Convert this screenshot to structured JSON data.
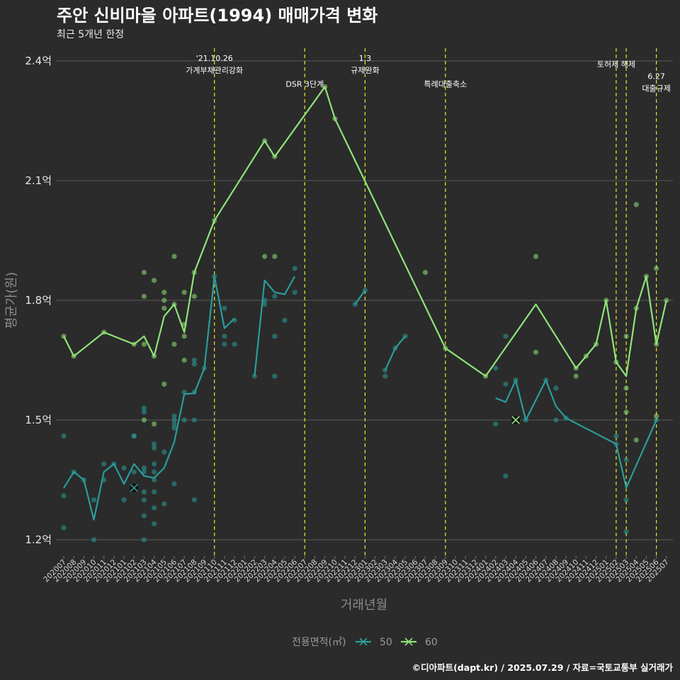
{
  "chart_data": {
    "type": "line",
    "title": "주안 신비마을 아파트(1994) 매매가격 변화",
    "subtitle": "최근 5개년 한정",
    "xlabel": "거래년월",
    "ylabel": "평균가(원)",
    "caption": "©디아파트(dapt.kr) / 2025.07.29 / 자료=국토교통부 실거래가",
    "legend": {
      "title": "전용면적(㎡)",
      "position": "bottom"
    },
    "categories": [
      "202007",
      "202008",
      "202009",
      "202010",
      "202011",
      "202012",
      "202101",
      "202102",
      "202103",
      "202104",
      "202105",
      "202106",
      "202107",
      "202108",
      "202109",
      "202110",
      "202111",
      "202112",
      "202201",
      "202202",
      "202203",
      "202204",
      "202205",
      "202206",
      "202207",
      "202208",
      "202209",
      "202210",
      "202211",
      "202212",
      "202301",
      "202302",
      "202303",
      "202304",
      "202305",
      "202306",
      "202307",
      "202308",
      "202309",
      "202310",
      "202311",
      "202312",
      "202401",
      "202402",
      "202403",
      "202404",
      "202405",
      "202406",
      "202407",
      "202408",
      "202409",
      "202410",
      "202411",
      "202412",
      "202501",
      "202502",
      "202503",
      "202504",
      "202505",
      "202506",
      "202507"
    ],
    "y_ticks": [
      {
        "value": 1.2,
        "label": "1.2억"
      },
      {
        "value": 1.5,
        "label": "1.5억"
      },
      {
        "value": 1.8,
        "label": "1.8억"
      },
      {
        "value": 2.1,
        "label": "2.1억"
      },
      {
        "value": 2.4,
        "label": "2.4억"
      }
    ],
    "ylim": [
      1.13,
      2.47
    ],
    "grid": true,
    "events": [
      {
        "month": "202110",
        "lines": [
          "'21.10.26",
          "가계부채관리강화"
        ],
        "label_y": 2.4
      },
      {
        "month": "202207",
        "lines": [
          "DSR 3단계"
        ],
        "label_y": 2.335
      },
      {
        "month": "202301",
        "lines": [
          "1.3",
          "규제완화"
        ],
        "label_y": 2.4
      },
      {
        "month": "202309",
        "lines": [
          "특례대출축소"
        ],
        "label_y": 2.335
      },
      {
        "month": "202502",
        "lines": [
          "토허제 해제"
        ],
        "label_y": 2.385
      },
      {
        "month": "202503",
        "lines": [],
        "label_y": 2.385
      },
      {
        "month": "202506",
        "lines": [
          "6.27",
          "대출규제"
        ],
        "label_y": 2.355
      }
    ],
    "series": [
      {
        "name": "50",
        "color": "#2a9d9b",
        "line_segments": [
          [
            [
              "202007",
              1.33
            ],
            [
              "202008",
              1.37
            ],
            [
              "202009",
              1.35
            ],
            [
              "202010",
              1.25
            ],
            [
              "202011",
              1.37
            ],
            [
              "202012",
              1.39
            ],
            [
              "202101",
              1.34
            ],
            [
              "202102",
              1.39
            ],
            [
              "202103",
              1.36
            ],
            [
              "202104",
              1.355
            ],
            [
              "202105",
              1.38
            ],
            [
              "202106",
              1.445
            ],
            [
              "202107",
              1.565
            ],
            [
              "202108",
              1.567
            ],
            [
              "202109",
              1.63
            ],
            [
              "202110",
              1.86
            ],
            [
              "202111",
              1.73
            ],
            [
              "202112",
              1.755
            ]
          ],
          [
            [
              "202202",
              1.61
            ],
            [
              "202203",
              1.85
            ],
            [
              "202204",
              1.82
            ],
            [
              "202205",
              1.815
            ],
            [
              "202206",
              1.86
            ]
          ],
          [
            [
              "202212",
              1.79
            ],
            [
              "202301",
              1.825
            ]
          ],
          [
            [
              "202303",
              1.625
            ],
            [
              "202304",
              1.68
            ],
            [
              "202305",
              1.71
            ]
          ],
          [
            [
              "202402",
              1.555
            ],
            [
              "202403",
              1.545
            ],
            [
              "202404",
              1.6
            ],
            [
              "202405",
              1.5
            ],
            [
              "202407",
              1.6
            ],
            [
              "202408",
              1.535
            ],
            [
              "202409",
              1.505
            ],
            [
              "202502",
              1.44
            ],
            [
              "202503",
              1.33
            ],
            [
              "202506",
              1.5
            ]
          ]
        ],
        "points": [
          [
            "202007",
            1.46
          ],
          [
            "202007",
            1.31
          ],
          [
            "202007",
            1.23
          ],
          [
            "202008",
            1.37
          ],
          [
            "202009",
            1.35
          ],
          [
            "202010",
            1.2
          ],
          [
            "202010",
            1.3
          ],
          [
            "202011",
            1.35
          ],
          [
            "202011",
            1.39
          ],
          [
            "202012",
            1.39
          ],
          [
            "202101",
            1.38
          ],
          [
            "202101",
            1.3
          ],
          [
            "202102",
            1.46
          ],
          [
            "202102",
            1.46
          ],
          [
            "202102",
            1.37
          ],
          [
            "202103",
            1.53
          ],
          [
            "202103",
            1.52
          ],
          [
            "202103",
            1.37
          ],
          [
            "202103",
            1.32
          ],
          [
            "202103",
            1.3
          ],
          [
            "202103",
            1.26
          ],
          [
            "202103",
            1.2
          ],
          [
            "202103",
            1.38
          ],
          [
            "202104",
            1.44
          ],
          [
            "202104",
            1.43
          ],
          [
            "202104",
            1.39
          ],
          [
            "202104",
            1.37
          ],
          [
            "202104",
            1.35
          ],
          [
            "202104",
            1.32
          ],
          [
            "202104",
            1.28
          ],
          [
            "202104",
            1.24
          ],
          [
            "202105",
            1.42
          ],
          [
            "202105",
            1.29
          ],
          [
            "202106",
            1.51
          ],
          [
            "202106",
            1.5
          ],
          [
            "202106",
            1.49
          ],
          [
            "202106",
            1.48
          ],
          [
            "202106",
            1.34
          ],
          [
            "202107",
            1.5
          ],
          [
            "202107",
            1.57
          ],
          [
            "202108",
            1.64
          ],
          [
            "202108",
            1.65
          ],
          [
            "202108",
            1.57
          ],
          [
            "202108",
            1.5
          ],
          [
            "202108",
            1.3
          ],
          [
            "202109",
            1.63
          ],
          [
            "202110",
            1.86
          ],
          [
            "202111",
            1.78
          ],
          [
            "202111",
            1.71
          ],
          [
            "202111",
            1.69
          ],
          [
            "202112",
            1.75
          ],
          [
            "202112",
            1.69
          ],
          [
            "202202",
            1.61
          ],
          [
            "202203",
            1.8
          ],
          [
            "202203",
            1.79
          ],
          [
            "202204",
            1.81
          ],
          [
            "202204",
            1.71
          ],
          [
            "202204",
            1.61
          ],
          [
            "202205",
            1.75
          ],
          [
            "202206",
            1.88
          ],
          [
            "202206",
            1.82
          ],
          [
            "202212",
            1.79
          ],
          [
            "202301",
            1.825
          ],
          [
            "202303",
            1.61
          ],
          [
            "202303",
            1.625
          ],
          [
            "202304",
            1.68
          ],
          [
            "202305",
            1.71
          ],
          [
            "202402",
            1.63
          ],
          [
            "202402",
            1.49
          ],
          [
            "202403",
            1.71
          ],
          [
            "202403",
            1.59
          ],
          [
            "202403",
            1.36
          ],
          [
            "202404",
            1.6
          ],
          [
            "202405",
            1.5
          ],
          [
            "202407",
            1.6
          ],
          [
            "202408",
            1.58
          ],
          [
            "202408",
            1.5
          ],
          [
            "202409",
            1.505
          ],
          [
            "202502",
            1.46
          ],
          [
            "202502",
            1.44
          ],
          [
            "202503",
            1.4
          ],
          [
            "202503",
            1.3
          ],
          [
            "202503",
            1.22
          ],
          [
            "202506",
            1.5
          ]
        ],
        "marker_point": [
          "202102",
          1.33
        ]
      },
      {
        "name": "60",
        "color": "#90e37a",
        "line_segments": [
          [
            [
              "202007",
              1.71
            ],
            [
              "202008",
              1.66
            ],
            [
              "202011",
              1.72
            ],
            [
              "202102",
              1.69
            ],
            [
              "202103",
              1.71
            ],
            [
              "202104",
              1.66
            ],
            [
              "202105",
              1.76
            ],
            [
              "202106",
              1.79
            ],
            [
              "202107",
              1.72
            ],
            [
              "202108",
              1.87
            ],
            [
              "202110",
              2.0
            ],
            [
              "202203",
              2.2
            ],
            [
              "202204",
              2.16
            ],
            [
              "202209",
              2.335
            ],
            [
              "202210",
              2.255
            ],
            [
              "202309",
              1.68
            ],
            [
              "202401",
              1.61
            ],
            [
              "202406",
              1.79
            ],
            [
              "202410",
              1.63
            ],
            [
              "202411",
              1.66
            ],
            [
              "202412",
              1.69
            ],
            [
              "202501",
              1.8
            ],
            [
              "202502",
              1.645
            ],
            [
              "202503",
              1.61
            ],
            [
              "202504",
              1.78
            ],
            [
              "202505",
              1.86
            ],
            [
              "202506",
              1.69
            ],
            [
              "202507",
              1.8
            ]
          ]
        ],
        "points": [
          [
            "202007",
            1.71
          ],
          [
            "202008",
            1.66
          ],
          [
            "202011",
            1.72
          ],
          [
            "202102",
            1.69
          ],
          [
            "202103",
            1.87
          ],
          [
            "202103",
            1.81
          ],
          [
            "202103",
            1.5
          ],
          [
            "202103",
            1.69
          ],
          [
            "202104",
            1.85
          ],
          [
            "202104",
            1.49
          ],
          [
            "202104",
            1.66
          ],
          [
            "202105",
            1.82
          ],
          [
            "202105",
            1.8
          ],
          [
            "202105",
            1.78
          ],
          [
            "202105",
            1.59
          ],
          [
            "202106",
            1.91
          ],
          [
            "202106",
            1.79
          ],
          [
            "202106",
            1.69
          ],
          [
            "202107",
            1.82
          ],
          [
            "202107",
            1.74
          ],
          [
            "202107",
            1.71
          ],
          [
            "202107",
            1.65
          ],
          [
            "202108",
            1.87
          ],
          [
            "202108",
            1.81
          ],
          [
            "202110",
            2.0
          ],
          [
            "202203",
            2.2
          ],
          [
            "202203",
            1.91
          ],
          [
            "202204",
            2.16
          ],
          [
            "202204",
            1.91
          ],
          [
            "202209",
            2.335
          ],
          [
            "202210",
            2.255
          ],
          [
            "202307",
            1.87
          ],
          [
            "202309",
            1.68
          ],
          [
            "202401",
            1.61
          ],
          [
            "202406",
            1.91
          ],
          [
            "202406",
            1.67
          ],
          [
            "202410",
            1.63
          ],
          [
            "202410",
            1.61
          ],
          [
            "202411",
            1.66
          ],
          [
            "202412",
            1.69
          ],
          [
            "202501",
            1.8
          ],
          [
            "202502",
            1.645
          ],
          [
            "202503",
            1.71
          ],
          [
            "202503",
            1.58
          ],
          [
            "202503",
            1.52
          ],
          [
            "202504",
            2.04
          ],
          [
            "202504",
            1.78
          ],
          [
            "202504",
            1.45
          ],
          [
            "202505",
            1.86
          ],
          [
            "202506",
            1.88
          ],
          [
            "202506",
            1.69
          ],
          [
            "202506",
            1.51
          ],
          [
            "202507",
            1.8
          ]
        ],
        "marker_point": [
          "202404",
          1.5
        ]
      }
    ]
  }
}
